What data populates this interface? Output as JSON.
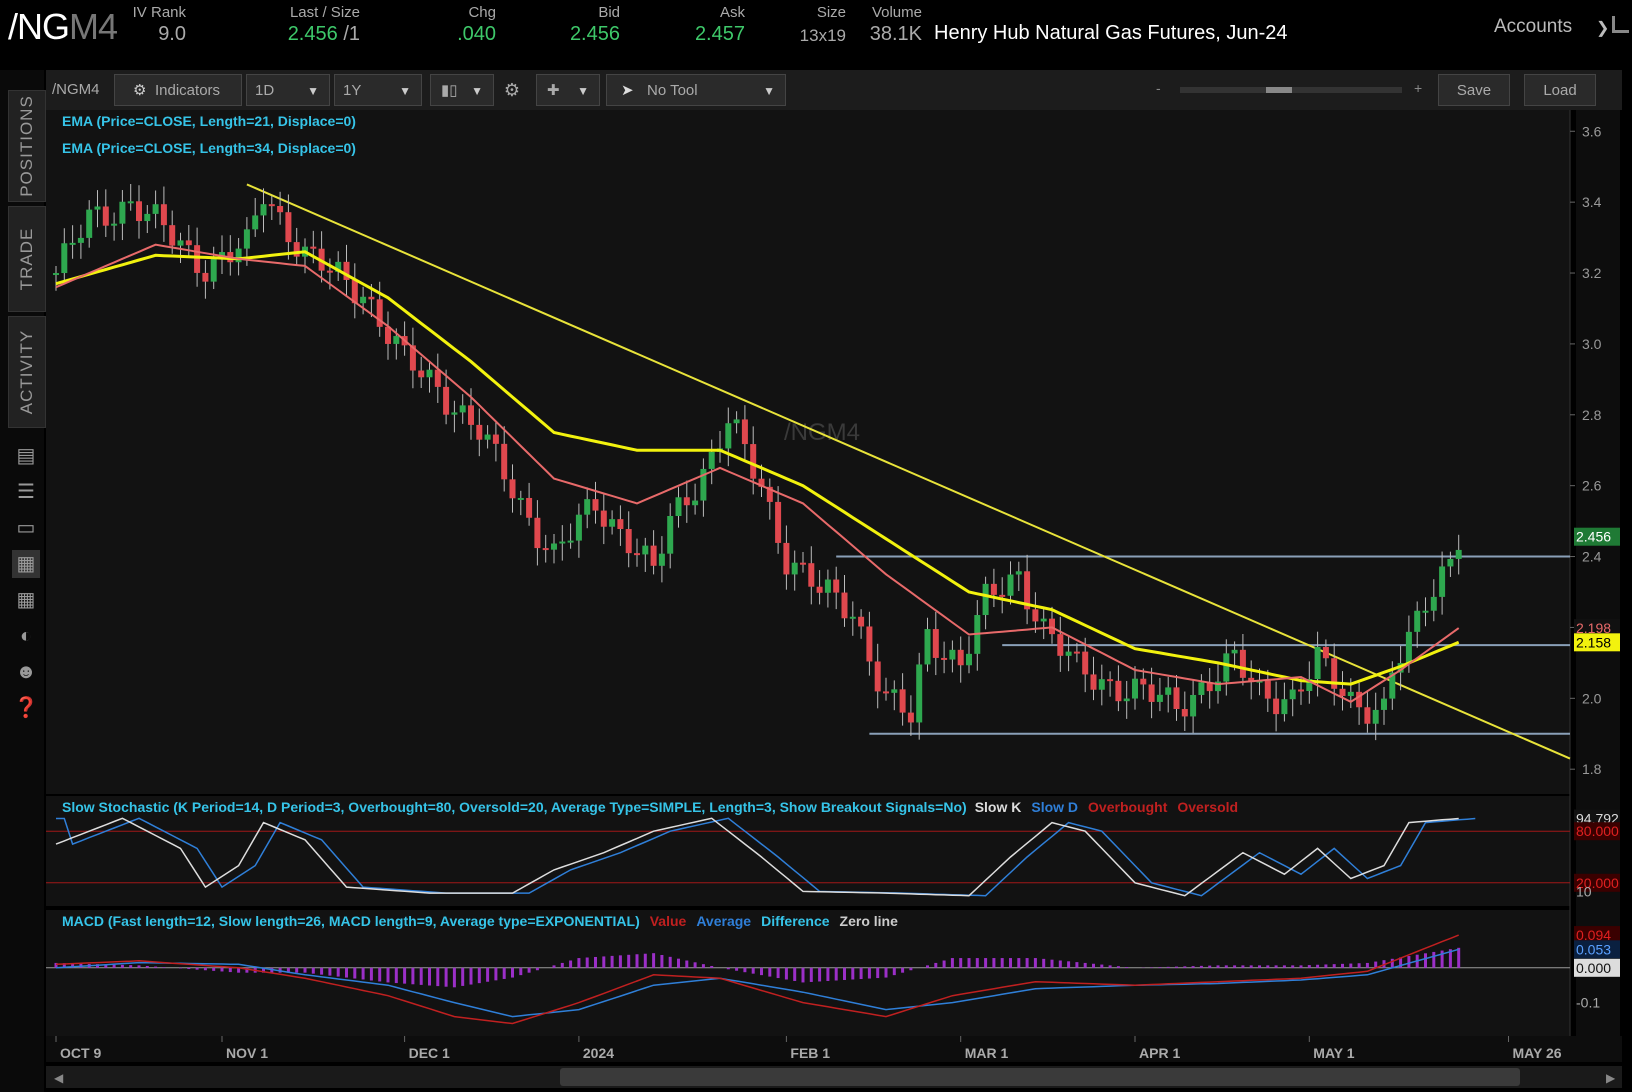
{
  "header": {
    "symbol_main": "/NG",
    "symbol_dim": "M4",
    "iv_rank_label": "IV Rank",
    "iv_rank": "9.0",
    "last_label": "Last / Size",
    "last": "2.456",
    "last_size": "/1",
    "chg_label": "Chg",
    "chg": ".040",
    "bid_label": "Bid",
    "bid": "2.456",
    "ask_label": "Ask",
    "ask": "2.457",
    "size_label": "Size",
    "size": "13x19",
    "volume_label": "Volume",
    "volume": "38.1K",
    "description": "Henry Hub Natural Gas Futures, Jun-24",
    "accounts": "Accounts"
  },
  "sidebar": {
    "tabs": [
      "POSITIONS",
      "TRADE",
      "ACTIVITY"
    ]
  },
  "toolbar": {
    "symbol": "/NGM4",
    "indicators": "Indicators",
    "interval": "1D",
    "range": "1Y",
    "tool": "No Tool",
    "zoom_minus": "-",
    "zoom_plus": "+",
    "save": "Save",
    "load": "Load"
  },
  "watermark": "/NGM4",
  "studies": {
    "ema21": "EMA (Price=CLOSE, Length=21, Displace=0)",
    "ema34": "EMA (Price=CLOSE, Length=34, Displace=0)",
    "stoch": "Slow Stochastic (K Period=14, D Period=3, Overbought=80, Oversold=20, Average Type=SIMPLE, Length=3, Show Breakout Signals=No)",
    "stoch_legend": [
      "Slow K",
      "Slow D",
      "Overbought",
      "Oversold"
    ],
    "macd": "MACD (Fast length=12, Slow length=26, MACD length=9, Average type=EXPONENTIAL)",
    "macd_legend": [
      "Value",
      "Average",
      "Difference",
      "Zero line"
    ]
  },
  "colors": {
    "up": "#2ea84f",
    "down": "#e0484e",
    "ema21": "#e86a6a",
    "ema34": "#f2f20e",
    "trend": "#e8e33a",
    "level": "#8aa0b8",
    "studies_text": "#36c4e8"
  },
  "chart_data": {
    "type": "candlestick",
    "price_axis": {
      "ticks": [
        "3.6",
        "3.4",
        "3.2",
        "3.0",
        "2.8",
        "2.6",
        "2.4",
        "2.2",
        "2.0",
        "1.8"
      ],
      "range": [
        1.73,
        3.66
      ]
    },
    "date_axis": [
      "OCT 9",
      "NOV 1",
      "DEC 1",
      "2024",
      "FEB 1",
      "MAR 1",
      "APR 1",
      "MAY 1",
      "MAY 26"
    ],
    "last_price_label": "2.456",
    "ema21_label": "2.198",
    "ema34_label": "2.158",
    "support_levels": [
      2.4,
      2.15,
      1.9
    ],
    "price_path": [
      [
        0,
        3.2
      ],
      [
        4,
        3.35
      ],
      [
        9,
        3.4
      ],
      [
        14,
        3.3
      ],
      [
        18,
        3.22
      ],
      [
        23,
        3.27
      ],
      [
        25,
        3.43
      ],
      [
        30,
        3.25
      ],
      [
        33,
        3.2
      ],
      [
        37,
        3.15
      ],
      [
        42,
        2.95
      ],
      [
        46,
        2.88
      ],
      [
        51,
        2.75
      ],
      [
        56,
        2.55
      ],
      [
        60,
        2.4
      ],
      [
        65,
        2.55
      ],
      [
        69,
        2.45
      ],
      [
        72,
        2.35
      ],
      [
        74,
        2.5
      ],
      [
        79,
        2.68
      ],
      [
        81,
        2.78
      ],
      [
        85,
        2.6
      ],
      [
        88,
        2.4
      ],
      [
        92,
        2.3
      ],
      [
        96,
        2.25
      ],
      [
        100,
        2.0
      ],
      [
        103,
        1.94
      ],
      [
        105,
        2.18
      ],
      [
        109,
        2.1
      ],
      [
        112,
        2.27
      ],
      [
        116,
        2.35
      ],
      [
        119,
        2.2
      ],
      [
        123,
        2.08
      ],
      [
        126,
        2.05
      ],
      [
        130,
        2.02
      ],
      [
        135,
        1.98
      ],
      [
        139,
        2.05
      ],
      [
        142,
        2.1
      ],
      [
        145,
        2.02
      ],
      [
        149,
        2.0
      ],
      [
        152,
        2.1
      ],
      [
        156,
        2.0
      ],
      [
        160,
        1.96
      ],
      [
        161,
        2.07
      ],
      [
        163,
        2.15
      ],
      [
        165,
        2.28
      ],
      [
        168,
        2.4
      ],
      [
        169,
        2.46
      ]
    ],
    "ema21_path": [
      [
        0,
        3.16
      ],
      [
        12,
        3.28
      ],
      [
        22,
        3.24
      ],
      [
        30,
        3.22
      ],
      [
        40,
        3.05
      ],
      [
        50,
        2.85
      ],
      [
        60,
        2.62
      ],
      [
        70,
        2.55
      ],
      [
        80,
        2.65
      ],
      [
        90,
        2.55
      ],
      [
        100,
        2.35
      ],
      [
        110,
        2.18
      ],
      [
        120,
        2.2
      ],
      [
        130,
        2.08
      ],
      [
        140,
        2.04
      ],
      [
        150,
        2.06
      ],
      [
        156,
        1.99
      ],
      [
        162,
        2.08
      ],
      [
        169,
        2.198
      ]
    ],
    "ema34_path": [
      [
        0,
        3.17
      ],
      [
        12,
        3.25
      ],
      [
        22,
        3.24
      ],
      [
        30,
        3.26
      ],
      [
        40,
        3.13
      ],
      [
        50,
        2.95
      ],
      [
        60,
        2.75
      ],
      [
        70,
        2.7
      ],
      [
        80,
        2.7
      ],
      [
        90,
        2.6
      ],
      [
        100,
        2.45
      ],
      [
        110,
        2.3
      ],
      [
        120,
        2.25
      ],
      [
        130,
        2.14
      ],
      [
        140,
        2.1
      ],
      [
        150,
        2.05
      ],
      [
        156,
        2.04
      ],
      [
        162,
        2.09
      ],
      [
        169,
        2.158
      ]
    ],
    "stochastic": {
      "levels": {
        "overbought": 80,
        "oversold": 20
      },
      "labels": [
        "94.792",
        "80.000",
        "20.000",
        "10"
      ],
      "k_path": [
        [
          0,
          65
        ],
        [
          8,
          95
        ],
        [
          15,
          60
        ],
        [
          18,
          15
        ],
        [
          22,
          40
        ],
        [
          25,
          90
        ],
        [
          30,
          70
        ],
        [
          35,
          15
        ],
        [
          45,
          8
        ],
        [
          55,
          8
        ],
        [
          60,
          35
        ],
        [
          66,
          55
        ],
        [
          72,
          80
        ],
        [
          79,
          95
        ],
        [
          85,
          50
        ],
        [
          90,
          10
        ],
        [
          100,
          8
        ],
        [
          110,
          5
        ],
        [
          115,
          50
        ],
        [
          120,
          90
        ],
        [
          124,
          80
        ],
        [
          130,
          20
        ],
        [
          136,
          5
        ],
        [
          143,
          55
        ],
        [
          148,
          30
        ],
        [
          152,
          60
        ],
        [
          156,
          25
        ],
        [
          160,
          40
        ],
        [
          163,
          90
        ],
        [
          169,
          94.8
        ]
      ]
    },
    "macd": {
      "labels": [
        "0.094",
        "0.053",
        "0.000",
        "-0.1"
      ],
      "range": [
        -0.19,
        0.12
      ]
    }
  }
}
